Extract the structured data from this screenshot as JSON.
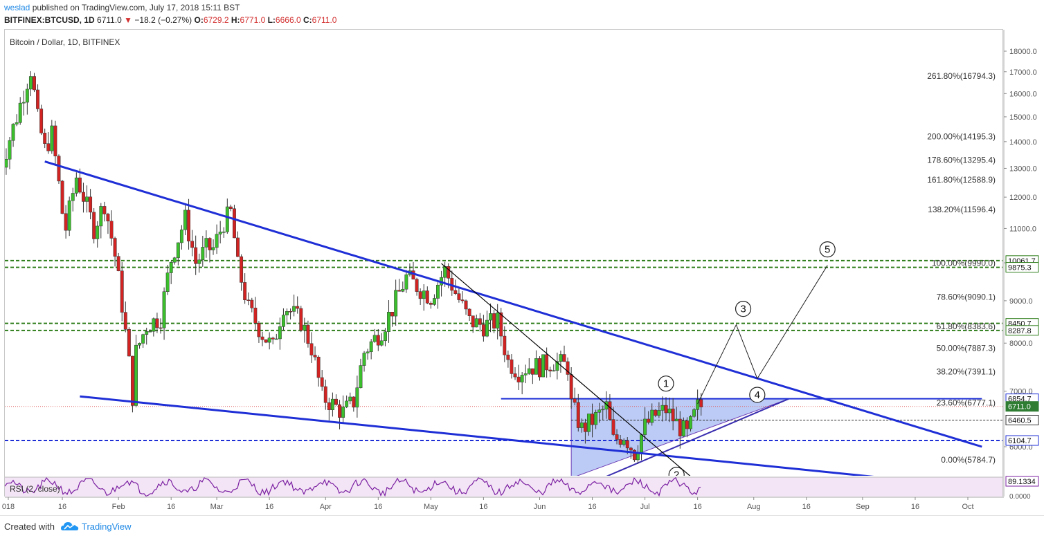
{
  "header": {
    "author": "weslad",
    "published": "published on TradingView.com, July 17, 2018 15:11 BST",
    "symbol": "BITFINEX:BTCUSD, 1D",
    "last": "6711.0",
    "change": "−18.2 (−0.27%)",
    "o_label": "O:",
    "o_val": "6729.2",
    "h_label": "H:",
    "h_val": "6771.0",
    "l_label": "L:",
    "l_val": "6666.0",
    "c_label": "C:",
    "c_val": "6711.0"
  },
  "footer": {
    "created": "Created with",
    "brand": "TradingView"
  },
  "colors": {
    "up": "#3bbf2c",
    "down": "#d22323",
    "trend": "#1f2fd6",
    "dash_green": "#2e7d1a",
    "dash_blue": "#1f2fd6",
    "rsi": "#7b1fa2",
    "rsi_bg": "#f3e5f5",
    "box": "#8fa8ee"
  },
  "chart_data": {
    "type": "candlestick",
    "title": "Bitcoin / Dollar, 1D, BITFINEX",
    "y_scale": "log",
    "ylim": [
      5300,
      18900
    ],
    "y_ticks": [
      "18000.0",
      "17000.0",
      "16000.0",
      "15000.0",
      "14000.0",
      "13000.0",
      "12000.0",
      "11000.0",
      "10000.0",
      "9000.0",
      "8000.0",
      "7000.0",
      "6000.0"
    ],
    "x_labels": [
      {
        "label": "018",
        "date": "2018-01-01"
      },
      {
        "label": "16",
        "date": "2018-01-16"
      },
      {
        "label": "Feb",
        "date": "2018-02-01"
      },
      {
        "label": "16",
        "date": "2018-02-16"
      },
      {
        "label": "Mar",
        "date": "2018-03-01"
      },
      {
        "label": "16",
        "date": "2018-03-16"
      },
      {
        "label": "Apr",
        "date": "2018-04-01"
      },
      {
        "label": "16",
        "date": "2018-04-16"
      },
      {
        "label": "May",
        "date": "2018-05-01"
      },
      {
        "label": "16",
        "date": "2018-05-16"
      },
      {
        "label": "Jun",
        "date": "2018-06-01"
      },
      {
        "label": "16",
        "date": "2018-06-16"
      },
      {
        "label": "Jul",
        "date": "2018-07-01"
      },
      {
        "label": "16",
        "date": "2018-07-16"
      },
      {
        "label": "Aug",
        "date": "2018-08-01"
      },
      {
        "label": "16",
        "date": "2018-08-16"
      },
      {
        "label": "Sep",
        "date": "2018-09-01"
      },
      {
        "label": "16",
        "date": "2018-09-16"
      },
      {
        "label": "Oct",
        "date": "2018-10-01"
      }
    ],
    "price_path": [
      [
        "2017-12-29",
        12800
      ],
      [
        "2018-01-03",
        15000
      ],
      [
        "2018-01-07",
        17100
      ],
      [
        "2018-01-09",
        14900
      ],
      [
        "2018-01-11",
        13700
      ],
      [
        "2018-01-13",
        14300
      ],
      [
        "2018-01-16",
        11500
      ],
      [
        "2018-01-17",
        11000
      ],
      [
        "2018-01-20",
        12700
      ],
      [
        "2018-01-25",
        11000
      ],
      [
        "2018-01-28",
        11800
      ],
      [
        "2018-01-31",
        10200
      ],
      [
        "2018-02-02",
        8900
      ],
      [
        "2018-02-05",
        6900
      ],
      [
        "2018-02-06",
        7800
      ],
      [
        "2018-02-09",
        8400
      ],
      [
        "2018-02-13",
        8600
      ],
      [
        "2018-02-16",
        10100
      ],
      [
        "2018-02-20",
        11300
      ],
      [
        "2018-02-23",
        10000
      ],
      [
        "2018-02-26",
        10400
      ],
      [
        "2018-02-28",
        10400
      ],
      [
        "2018-03-03",
        11200
      ],
      [
        "2018-03-05",
        11500
      ],
      [
        "2018-03-07",
        9900
      ],
      [
        "2018-03-10",
        8800
      ],
      [
        "2018-03-14",
        8200
      ],
      [
        "2018-03-17",
        7900
      ],
      [
        "2018-03-20",
        8900
      ],
      [
        "2018-03-25",
        8500
      ],
      [
        "2018-03-28",
        7900
      ],
      [
        "2018-03-31",
        6900
      ],
      [
        "2018-04-02",
        6800
      ],
      [
        "2018-04-06",
        6600
      ],
      [
        "2018-04-09",
        6800
      ],
      [
        "2018-04-12",
        7800
      ],
      [
        "2018-04-17",
        8300
      ],
      [
        "2018-04-20",
        8800
      ],
      [
        "2018-04-24",
        9600
      ],
      [
        "2018-04-28",
        9300
      ],
      [
        "2018-05-01",
        9100
      ],
      [
        "2018-05-05",
        9800
      ],
      [
        "2018-05-08",
        9200
      ],
      [
        "2018-05-12",
        8500
      ],
      [
        "2018-05-16",
        8400
      ],
      [
        "2018-05-20",
        8500
      ],
      [
        "2018-05-23",
        7600
      ],
      [
        "2018-05-26",
        7400
      ],
      [
        "2018-05-29",
        7500
      ],
      [
        "2018-06-01",
        7500
      ],
      [
        "2018-06-05",
        7600
      ],
      [
        "2018-06-09",
        7500
      ],
      [
        "2018-06-10",
        6750
      ],
      [
        "2018-06-13",
        6300
      ],
      [
        "2018-06-17",
        6500
      ],
      [
        "2018-06-20",
        6700
      ],
      [
        "2018-06-22",
        6100
      ],
      [
        "2018-06-25",
        6200
      ],
      [
        "2018-06-28",
        5900
      ],
      [
        "2018-07-01",
        6350
      ],
      [
        "2018-07-04",
        6550
      ],
      [
        "2018-07-07",
        6650
      ],
      [
        "2018-07-10",
        6400
      ],
      [
        "2018-07-13",
        6200
      ],
      [
        "2018-07-16",
        6700
      ],
      [
        "2018-07-17",
        6711
      ]
    ],
    "fib_levels": [
      {
        "label": "261.80%(16794.3)",
        "value": 16794.3
      },
      {
        "label": "200.00%(14195.3)",
        "value": 14195.3
      },
      {
        "label": "178.60%(13295.4)",
        "value": 13295.4
      },
      {
        "label": "161.80%(12588.9)",
        "value": 12588.9
      },
      {
        "label": "138.20%(11596.4)",
        "value": 11596.4
      },
      {
        "label": "100.00%(9990.0)",
        "value": 9990.0
      },
      {
        "label": "78.60%(9090.1)",
        "value": 9090.1
      },
      {
        "label": "61.80%(8383.6)",
        "value": 8383.6
      },
      {
        "label": "50.00%(7887.3)",
        "value": 7887.3
      },
      {
        "label": "38.20%(7391.1)",
        "value": 7391.1
      },
      {
        "label": "23.60%(6777.1)",
        "value": 6777.1
      },
      {
        "label": "0.00%(5784.7)",
        "value": 5784.7
      }
    ],
    "price_tags": [
      {
        "label": "10061.7",
        "value": 10061.7,
        "style": "green-dash"
      },
      {
        "label": "9875.3",
        "value": 9875.3,
        "style": "green-dash"
      },
      {
        "label": "8450.7",
        "value": 8450.7,
        "style": "green-dash"
      },
      {
        "label": "8287.8",
        "value": 8287.8,
        "style": "green-dash"
      },
      {
        "label": "6854.7",
        "value": 6854.7,
        "style": "blue-solid"
      },
      {
        "label": "6711.0",
        "value": 6711.0,
        "style": "red-dot"
      },
      {
        "label": "6460.5",
        "value": 6460.5,
        "style": "black-dash"
      },
      {
        "label": "6104.7",
        "value": 6104.7,
        "style": "blue-dash"
      }
    ],
    "wave_labels": [
      {
        "label": "1",
        "date": "2018-07-07",
        "value": 7150
      },
      {
        "label": "2",
        "date": "2018-07-10",
        "value": 5550
      },
      {
        "label": "3",
        "date": "2018-07-29",
        "value": 8800
      },
      {
        "label": "4",
        "date": "2018-08-02",
        "value": 6930
      },
      {
        "label": "5",
        "date": "2018-08-22",
        "value": 10380
      }
    ],
    "wave_path": [
      [
        "2018-07-16",
        6760
      ],
      [
        "2018-07-27",
        8420
      ],
      [
        "2018-08-02",
        7250
      ],
      [
        "2018-08-22",
        9930
      ]
    ],
    "trendlines": [
      {
        "from": [
          "2018-01-11",
          13250
        ],
        "to": [
          "2018-10-05",
          6000
        ],
        "color": "trend"
      },
      {
        "from": [
          "2018-01-21",
          6900
        ],
        "to": [
          "2018-10-02",
          5370
        ],
        "color": "trend"
      },
      {
        "from": [
          "2018-05-04",
          9980
        ],
        "to": [
          "2018-07-19",
          5300
        ],
        "color": "black"
      }
    ],
    "triangle": {
      "points": [
        [
          "2018-06-10",
          5500
        ],
        [
          "2018-06-10",
          6854.7
        ],
        [
          "2018-08-11",
          6854.7
        ]
      ],
      "apex_line": [
        [
          "2018-06-10",
          5300
        ],
        [
          "2018-08-11",
          6854.7
        ]
      ]
    },
    "resistance_line": {
      "from": "2018-05-21",
      "to": "2018-10-05",
      "value": 6854.7
    },
    "rsi": {
      "label": "RSI (2, close)",
      "last": "89.1334",
      "ticks": [
        "0.0000"
      ]
    }
  }
}
